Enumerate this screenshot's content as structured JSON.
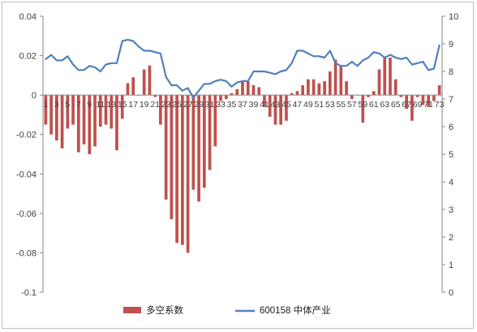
{
  "chart_data": {
    "type": "bar+line",
    "title": "",
    "x": [
      1,
      2,
      3,
      4,
      5,
      6,
      7,
      8,
      9,
      10,
      11,
      12,
      13,
      14,
      15,
      16,
      17,
      18,
      19,
      20,
      21,
      22,
      23,
      24,
      25,
      26,
      27,
      28,
      29,
      30,
      31,
      32,
      33,
      34,
      35,
      36,
      37,
      38,
      39,
      40,
      41,
      42,
      43,
      44,
      45,
      46,
      47,
      48,
      49,
      50,
      51,
      52,
      53,
      54,
      55,
      56,
      57,
      58,
      59,
      60,
      61,
      62,
      63,
      64,
      65,
      66,
      67,
      68,
      69,
      70,
      71,
      72,
      73
    ],
    "x_tick_labels": [
      "1",
      "3",
      "5",
      "7",
      "9",
      "11",
      "13",
      "15",
      "17",
      "19",
      "21",
      "23",
      "25",
      "27",
      "29",
      "31",
      "33",
      "35",
      "37",
      "39",
      "41",
      "43",
      "45",
      "47",
      "49",
      "51",
      "53",
      "55",
      "57",
      "59",
      "61",
      "63",
      "65",
      "67",
      "69",
      "71",
      "73"
    ],
    "left_axis": {
      "min": -0.1,
      "max": 0.04,
      "step": 0.02,
      "tick_labels": [
        "0.04",
        "0.02",
        "0",
        "-0.02",
        "-0.04",
        "-0.06",
        "-0.08",
        "-0.1"
      ]
    },
    "right_axis": {
      "min": 0,
      "max": 10,
      "step": 1,
      "tick_labels": [
        "10",
        "9",
        "8",
        "7",
        "6",
        "5",
        "4",
        "3",
        "2",
        "1",
        "0"
      ]
    },
    "series": [
      {
        "name": "多空系数",
        "type": "bar",
        "axis": "left",
        "color": "#c0504d",
        "values": [
          -0.015,
          -0.02,
          -0.023,
          -0.027,
          -0.017,
          -0.015,
          -0.029,
          -0.025,
          -0.03,
          -0.026,
          -0.016,
          -0.015,
          -0.017,
          -0.028,
          -0.012,
          0.006,
          0.009,
          0.0,
          0.013,
          0.015,
          -0.001,
          -0.015,
          -0.053,
          -0.063,
          -0.075,
          -0.076,
          -0.08,
          -0.048,
          -0.054,
          -0.047,
          -0.038,
          -0.026,
          -0.003,
          -0.002,
          0.001,
          0.003,
          0.007,
          0.007,
          0.005,
          0.004,
          -0.006,
          -0.011,
          -0.015,
          -0.015,
          -0.013,
          0.001,
          0.002,
          0.005,
          0.008,
          0.008,
          0.006,
          0.007,
          0.012,
          0.018,
          0.015,
          0.007,
          -0.002,
          0.0,
          -0.014,
          -0.001,
          0.002,
          0.013,
          0.019,
          0.019,
          0.008,
          -0.001,
          -0.007,
          -0.013,
          -0.001,
          -0.005,
          -0.006,
          -0.003,
          0.005
        ]
      },
      {
        "name": "600158 中体产业",
        "type": "line",
        "axis": "right",
        "color": "#4f81bd",
        "values": [
          8.45,
          8.6,
          8.4,
          8.4,
          8.55,
          8.25,
          8.05,
          8.05,
          8.2,
          8.15,
          8.0,
          8.25,
          8.3,
          8.3,
          9.1,
          9.15,
          9.1,
          8.9,
          8.75,
          8.75,
          8.7,
          8.65,
          7.8,
          7.5,
          7.5,
          7.3,
          7.4,
          7.05,
          7.3,
          7.55,
          7.55,
          7.65,
          7.7,
          7.65,
          7.45,
          7.6,
          7.65,
          7.65,
          8.0,
          8.0,
          8.0,
          7.95,
          7.9,
          8.0,
          8.05,
          8.3,
          8.75,
          8.75,
          8.65,
          8.55,
          8.55,
          8.5,
          8.75,
          8.3,
          8.2,
          8.2,
          8.35,
          8.2,
          8.4,
          8.5,
          8.7,
          8.65,
          8.5,
          8.6,
          8.5,
          8.45,
          8.5,
          8.25,
          8.3,
          8.35,
          8.05,
          8.1,
          8.95
        ]
      }
    ],
    "legend": {
      "placement": "bottom"
    },
    "grid": false
  }
}
